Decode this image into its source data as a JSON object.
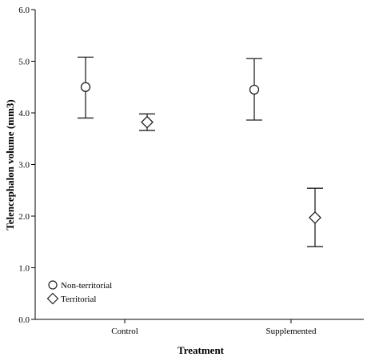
{
  "chart_data": {
    "type": "scatter",
    "title": "",
    "xlabel": "Treatment",
    "ylabel": "Telencephalon volume (mm3)",
    "categories": [
      "Control",
      "Supplemented"
    ],
    "ylim": [
      0.0,
      6.0
    ],
    "yticks": [
      "0.0",
      "1.0",
      "2.0",
      "3.0",
      "4.0",
      "5.0",
      "6.0"
    ],
    "grid": false,
    "legend_position": "bottom-left",
    "series": [
      {
        "name": "Non-territorial",
        "marker": "circle",
        "values": [
          4.5,
          4.45
        ],
        "lower": [
          3.9,
          3.86
        ],
        "upper": [
          5.08,
          5.05
        ]
      },
      {
        "name": "Territorial",
        "marker": "diamond",
        "values": [
          3.82,
          1.97
        ],
        "lower": [
          3.66,
          1.41
        ],
        "upper": [
          3.98,
          2.54
        ]
      }
    ]
  }
}
